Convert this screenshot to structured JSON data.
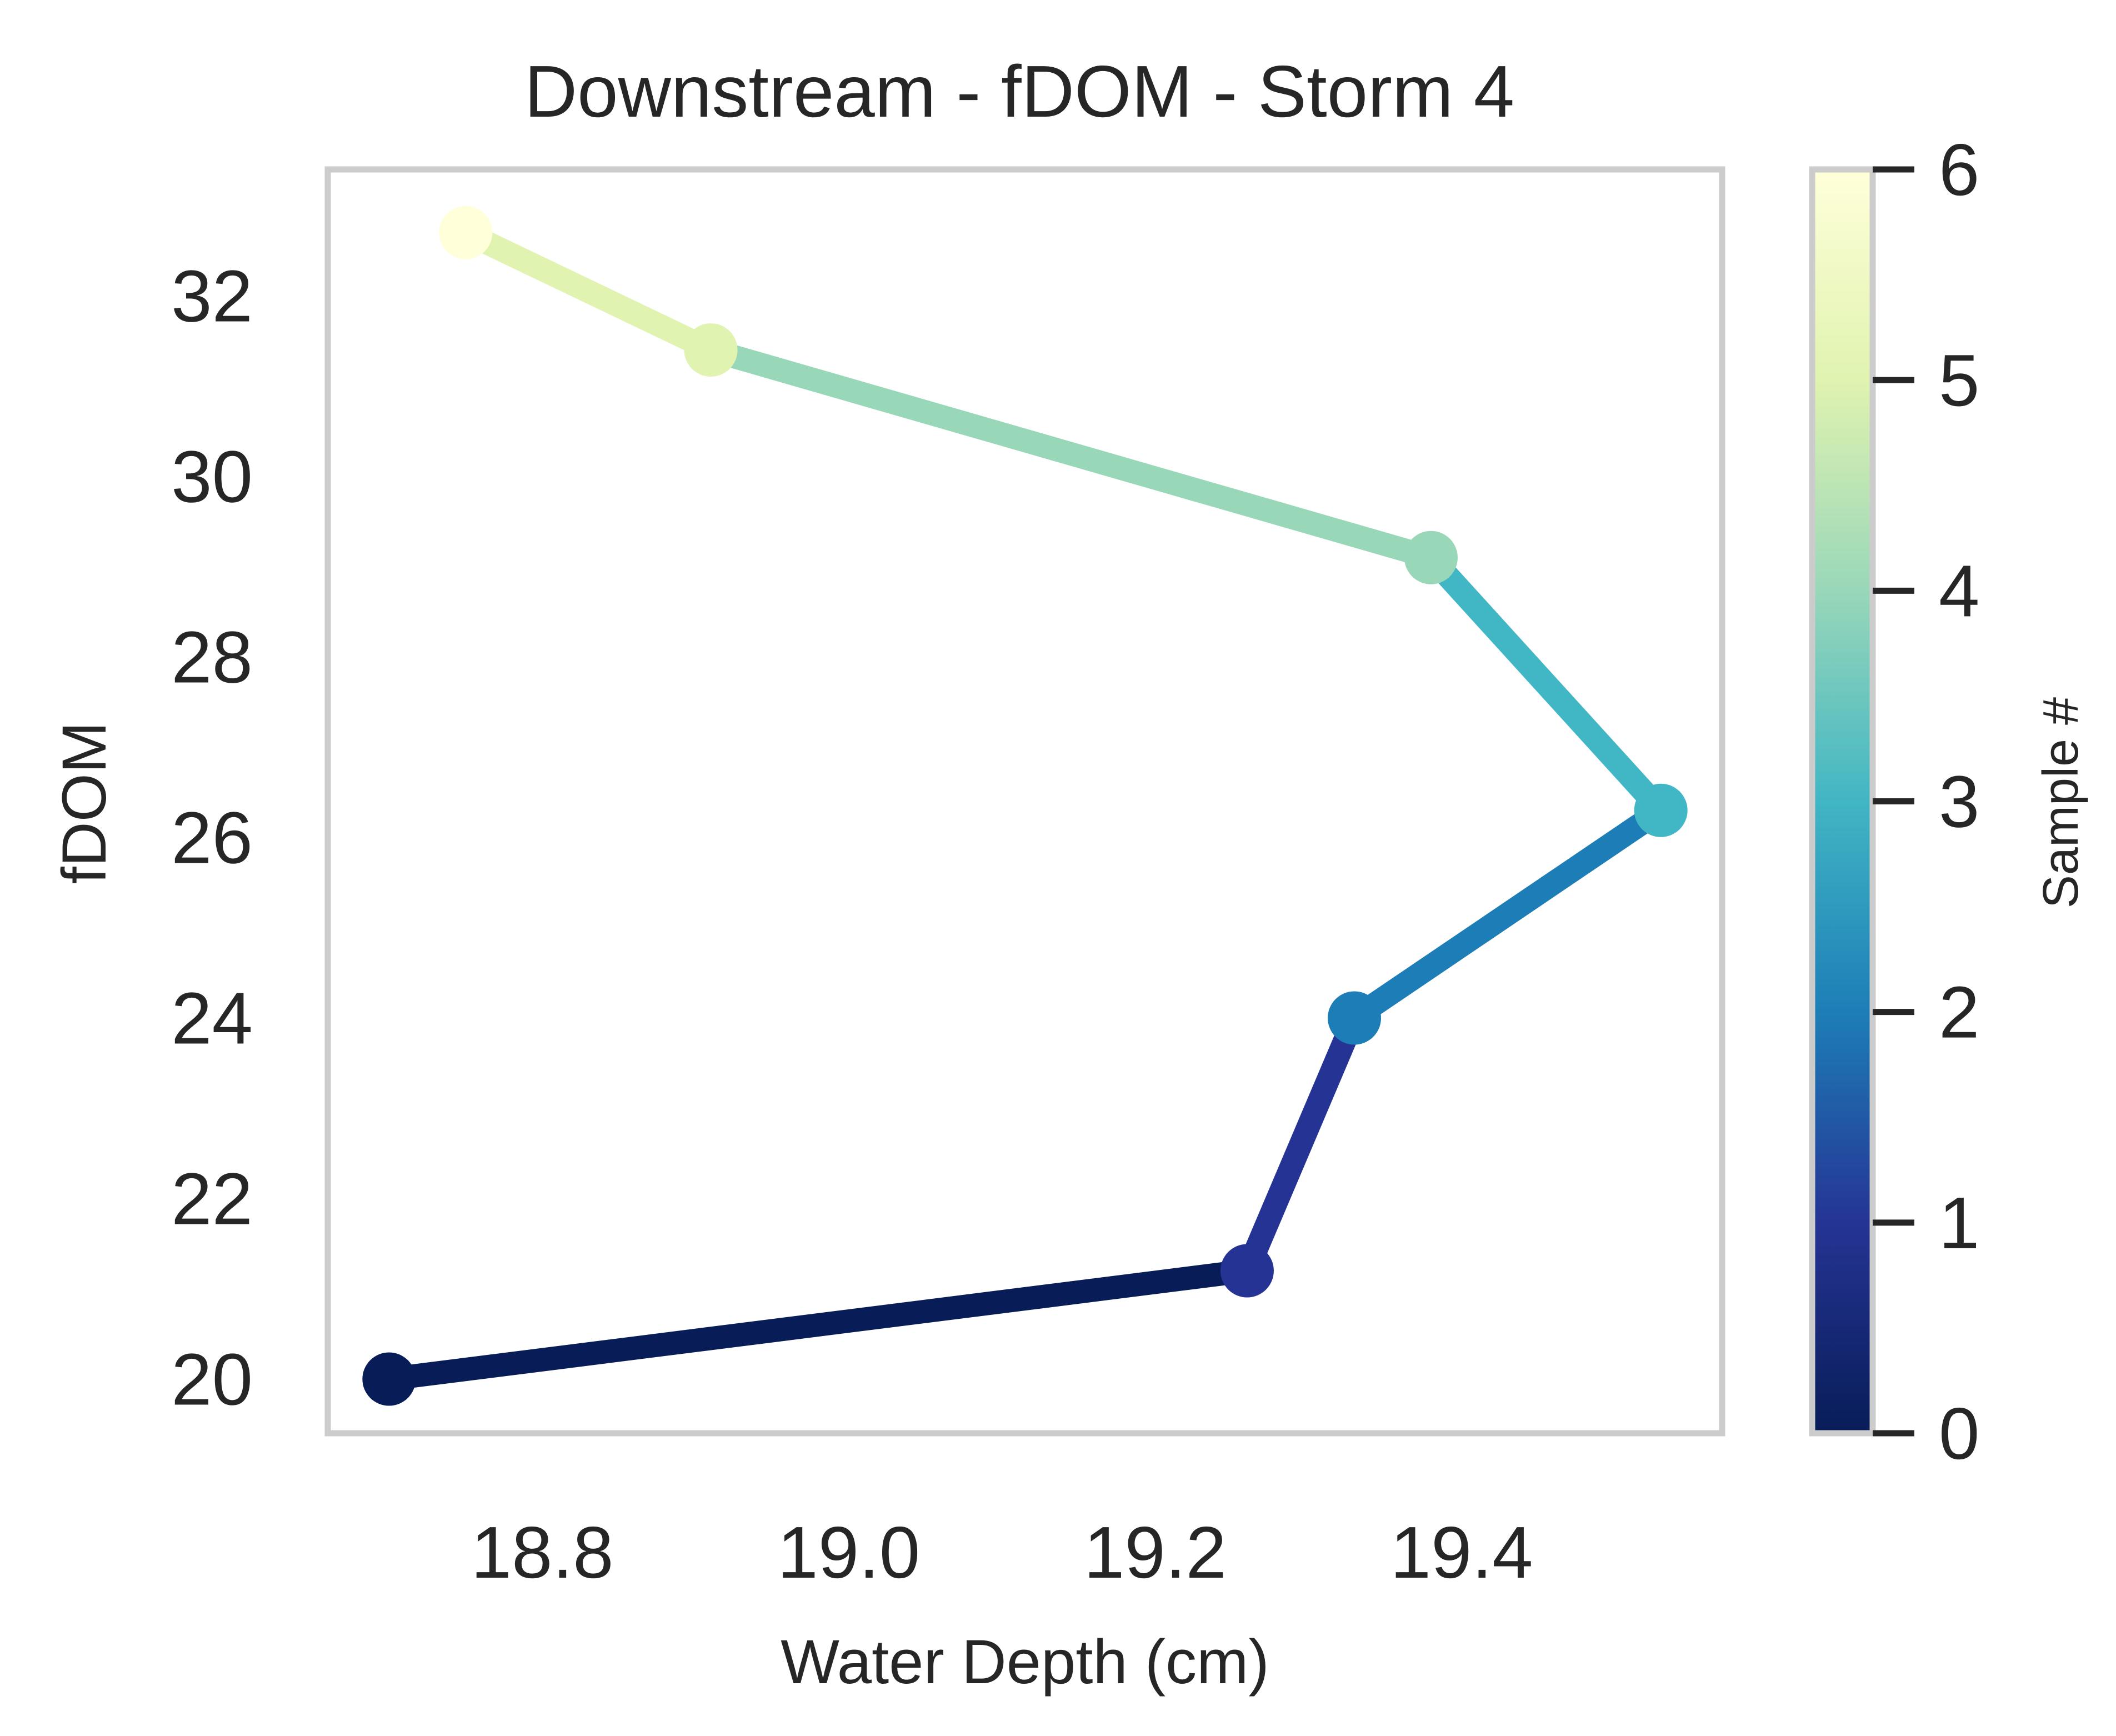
{
  "chart_data": {
    "type": "line",
    "title": "Downstream - fDOM - Storm 4",
    "xlabel": "Water Depth (cm)",
    "ylabel": "fDOM",
    "xlim": [
      18.66,
      19.57
    ],
    "ylim": [
      19.4,
      33.4
    ],
    "x_ticks": [
      18.8,
      19.0,
      19.2,
      19.4
    ],
    "x_tick_labels": [
      "18.8",
      "19.0",
      "19.2",
      "19.4"
    ],
    "y_ticks": [
      20,
      22,
      24,
      26,
      28,
      30,
      32
    ],
    "y_tick_labels": [
      "20",
      "22",
      "24",
      "26",
      "28",
      "30",
      "32"
    ],
    "grid": false,
    "colormap": "YlGnBu_r",
    "points": [
      {
        "sample": 0,
        "x": 18.7,
        "y": 20.0
      },
      {
        "sample": 1,
        "x": 19.26,
        "y": 21.2
      },
      {
        "sample": 2,
        "x": 19.33,
        "y": 24.0
      },
      {
        "sample": 3,
        "x": 19.53,
        "y": 26.3
      },
      {
        "sample": 4,
        "x": 19.38,
        "y": 29.1
      },
      {
        "sample": 5,
        "x": 18.91,
        "y": 31.4
      },
      {
        "sample": 6,
        "x": 18.75,
        "y": 32.7
      }
    ],
    "colorbar": {
      "label": "Sample #",
      "range": [
        0,
        6
      ],
      "ticks": [
        0,
        1,
        2,
        3,
        4,
        5,
        6
      ],
      "tick_labels": [
        "0",
        "1",
        "2",
        "3",
        "4",
        "5",
        "6"
      ],
      "stops": [
        "#081d58",
        "#253494",
        "#1d7eb7",
        "#41b6c4",
        "#99d7b9",
        "#e0f3b0",
        "#ffffd9"
      ]
    }
  }
}
